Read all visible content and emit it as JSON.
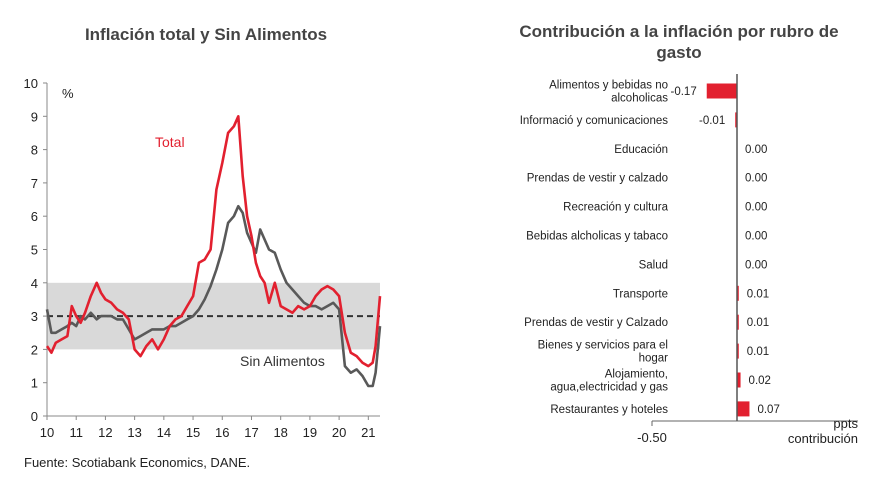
{
  "left_chart": {
    "title": "Inflación total y Sin Alimentos",
    "unit_label": "%",
    "x_ticks": [
      "10",
      "11",
      "12",
      "13",
      "14",
      "15",
      "16",
      "17",
      "18",
      "19",
      "20",
      "21"
    ],
    "y_ticks": [
      "0",
      "1",
      "2",
      "3",
      "4",
      "5",
      "6",
      "7",
      "8",
      "9",
      "10"
    ],
    "total_label": "Total",
    "core_label": "Sin Alimentos"
  },
  "right_chart": {
    "title_line1": "Contribución a la inflación por rubro de",
    "title_line2": "gasto",
    "x_min_label": "-0.50",
    "axis_unit_line1": "ppts",
    "axis_unit_line2": "contribución"
  },
  "chart_data": [
    {
      "type": "line",
      "title": "Inflación total y Sin Alimentos",
      "ylabel": "%",
      "ylim": [
        0,
        10
      ],
      "xlim": [
        2010,
        2021.4
      ],
      "target_band": [
        2,
        4
      ],
      "target_line": 3,
      "grid": false,
      "series": [
        {
          "name": "Total",
          "color": "#e2202f",
          "x": [
            2010.0,
            2010.15,
            2010.3,
            2010.5,
            2010.7,
            2010.85,
            2011.0,
            2011.15,
            2011.3,
            2011.5,
            2011.7,
            2011.85,
            2012.0,
            2012.2,
            2012.4,
            2012.6,
            2012.8,
            2013.0,
            2013.2,
            2013.4,
            2013.6,
            2013.8,
            2014.0,
            2014.2,
            2014.4,
            2014.6,
            2014.8,
            2015.0,
            2015.2,
            2015.4,
            2015.6,
            2015.8,
            2016.0,
            2016.2,
            2016.4,
            2016.55,
            2016.7,
            2016.85,
            2017.0,
            2017.15,
            2017.3,
            2017.45,
            2017.6,
            2017.8,
            2018.0,
            2018.2,
            2018.4,
            2018.6,
            2018.8,
            2019.0,
            2019.2,
            2019.4,
            2019.6,
            2019.8,
            2020.0,
            2020.2,
            2020.4,
            2020.6,
            2020.8,
            2021.0,
            2021.15,
            2021.25,
            2021.4
          ],
          "values": [
            2.1,
            1.9,
            2.2,
            2.3,
            2.4,
            3.3,
            3.0,
            2.8,
            3.1,
            3.6,
            4.0,
            3.7,
            3.5,
            3.4,
            3.2,
            3.1,
            2.9,
            2.0,
            1.8,
            2.1,
            2.3,
            2.0,
            2.3,
            2.7,
            2.9,
            3.0,
            3.3,
            3.6,
            4.6,
            4.7,
            5.0,
            6.8,
            7.6,
            8.5,
            8.7,
            9.0,
            7.2,
            6.0,
            5.4,
            4.6,
            4.2,
            4.0,
            3.4,
            4.0,
            3.3,
            3.2,
            3.1,
            3.3,
            3.2,
            3.3,
            3.6,
            3.8,
            3.9,
            3.8,
            3.6,
            2.5,
            1.9,
            1.8,
            1.6,
            1.5,
            1.6,
            2.1,
            3.6
          ]
        },
        {
          "name": "Sin Alimentos",
          "color": "#595959",
          "x": [
            2010.0,
            2010.15,
            2010.3,
            2010.5,
            2010.7,
            2010.85,
            2011.0,
            2011.15,
            2011.3,
            2011.5,
            2011.7,
            2011.85,
            2012.0,
            2012.2,
            2012.4,
            2012.6,
            2012.8,
            2013.0,
            2013.2,
            2013.4,
            2013.6,
            2013.8,
            2014.0,
            2014.2,
            2014.4,
            2014.6,
            2014.8,
            2015.0,
            2015.2,
            2015.4,
            2015.6,
            2015.8,
            2016.0,
            2016.2,
            2016.4,
            2016.55,
            2016.7,
            2016.85,
            2017.0,
            2017.15,
            2017.3,
            2017.45,
            2017.6,
            2017.8,
            2018.0,
            2018.2,
            2018.4,
            2018.6,
            2018.8,
            2019.0,
            2019.2,
            2019.4,
            2019.6,
            2019.8,
            2020.0,
            2020.2,
            2020.4,
            2020.6,
            2020.8,
            2021.0,
            2021.15,
            2021.25,
            2021.4
          ],
          "values": [
            3.2,
            2.5,
            2.5,
            2.6,
            2.7,
            2.8,
            2.7,
            3.0,
            2.9,
            3.1,
            2.9,
            3.0,
            3.0,
            3.0,
            2.9,
            2.9,
            2.6,
            2.3,
            2.4,
            2.5,
            2.6,
            2.6,
            2.6,
            2.7,
            2.7,
            2.8,
            2.9,
            3.0,
            3.2,
            3.5,
            3.9,
            4.4,
            5.0,
            5.8,
            6.0,
            6.3,
            6.1,
            5.5,
            5.2,
            4.9,
            5.6,
            5.3,
            5.0,
            4.9,
            4.4,
            4.0,
            3.8,
            3.6,
            3.4,
            3.3,
            3.3,
            3.2,
            3.3,
            3.4,
            3.2,
            1.5,
            1.3,
            1.4,
            1.2,
            0.9,
            0.9,
            1.3,
            2.7
          ]
        }
      ]
    },
    {
      "type": "bar",
      "title": "Contribución a la inflación por rubro de gasto",
      "orientation": "horizontal",
      "xlabel": "ppts contribución",
      "xlim": [
        -0.5,
        0.5
      ],
      "color": "#e2202f",
      "categories": [
        "Alimentos y bebidas no alcoholicas",
        "Informació y comunicaciones",
        "Educación",
        "Prendas de vestir y calzado",
        "Recreación y cultura",
        "Bebidas alcholicas y tabaco",
        "Salud",
        "Transporte",
        "Prendas de vestir y Calzado",
        "Bienes y servicios para el hogar",
        "Alojamiento, agua,electricidad y gas",
        "Restaurantes y hoteles"
      ],
      "category_lines": [
        [
          "Alimentos y bebidas no",
          "alcoholicas"
        ],
        [
          "Informació y comunicaciones"
        ],
        [
          "Educación"
        ],
        [
          "Prendas de vestir y calzado"
        ],
        [
          "Recreación y cultura"
        ],
        [
          "Bebidas alcholicas y tabaco"
        ],
        [
          "Salud"
        ],
        [
          "Transporte"
        ],
        [
          "Prendas de vestir y Calzado"
        ],
        [
          "Bienes y servicios para el",
          "hogar"
        ],
        [
          "Alojamiento,",
          "agua,electricidad y gas"
        ],
        [
          "Restaurantes y hoteles"
        ]
      ],
      "values": [
        -0.17,
        -0.01,
        0.0,
        0.0,
        0.0,
        0.0,
        0.0,
        0.01,
        0.01,
        0.01,
        0.02,
        0.07
      ],
      "labels": [
        "-0.17",
        "-0.01",
        "0.00",
        "0.00",
        "0.00",
        "0.00",
        "0.00",
        "0.01",
        "0.01",
        "0.01",
        "0.02",
        "0.07"
      ]
    }
  ],
  "source": "Fuente: Scotiabank Economics, DANE."
}
